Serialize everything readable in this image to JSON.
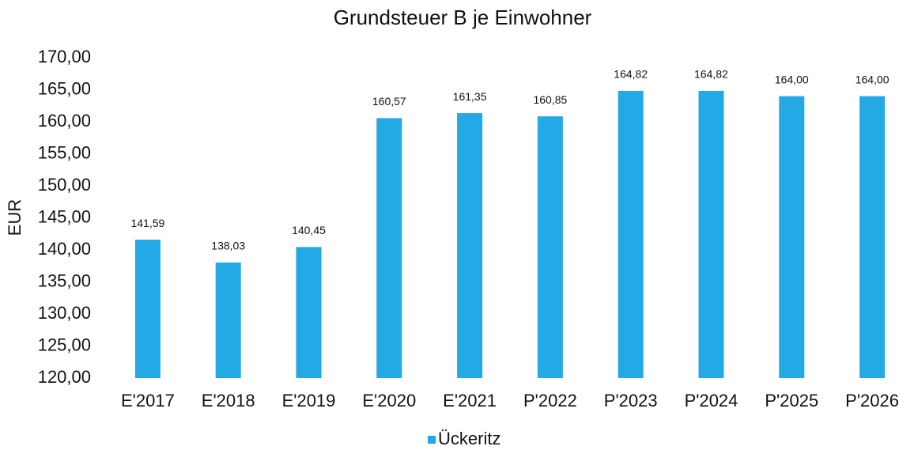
{
  "chart_data": {
    "type": "bar",
    "title": "Grundsteuer B je Einwohner",
    "y_label": "EUR",
    "categories": [
      "E'2017",
      "E'2018",
      "E'2019",
      "E'2020",
      "E'2021",
      "P'2022",
      "P'2023",
      "P'2024",
      "P'2025",
      "P'2026"
    ],
    "series": [
      {
        "name": "Ückeritz",
        "color": "#22a9e6",
        "values": [
          141.59,
          138.03,
          140.45,
          160.57,
          161.35,
          160.85,
          164.82,
          164.82,
          164.0,
          164.0
        ],
        "value_labels": [
          "141,59",
          "138,03",
          "140,45",
          "160,57",
          "161,35",
          "160,85",
          "164,82",
          "164,82",
          "164,00",
          "164,00"
        ]
      }
    ],
    "ylim": [
      120,
      170
    ],
    "yticks": [
      {
        "value": 120,
        "label": "120,00"
      },
      {
        "value": 125,
        "label": "125,00"
      },
      {
        "value": 130,
        "label": "130,00"
      },
      {
        "value": 135,
        "label": "135,00"
      },
      {
        "value": 140,
        "label": "140,00"
      },
      {
        "value": 145,
        "label": "145,00"
      },
      {
        "value": 150,
        "label": "150,00"
      },
      {
        "value": 155,
        "label": "155,00"
      },
      {
        "value": 160,
        "label": "160,00"
      },
      {
        "value": 165,
        "label": "165,00"
      },
      {
        "value": 170,
        "label": "170,00"
      }
    ],
    "grid": false,
    "legend": "bottom"
  }
}
